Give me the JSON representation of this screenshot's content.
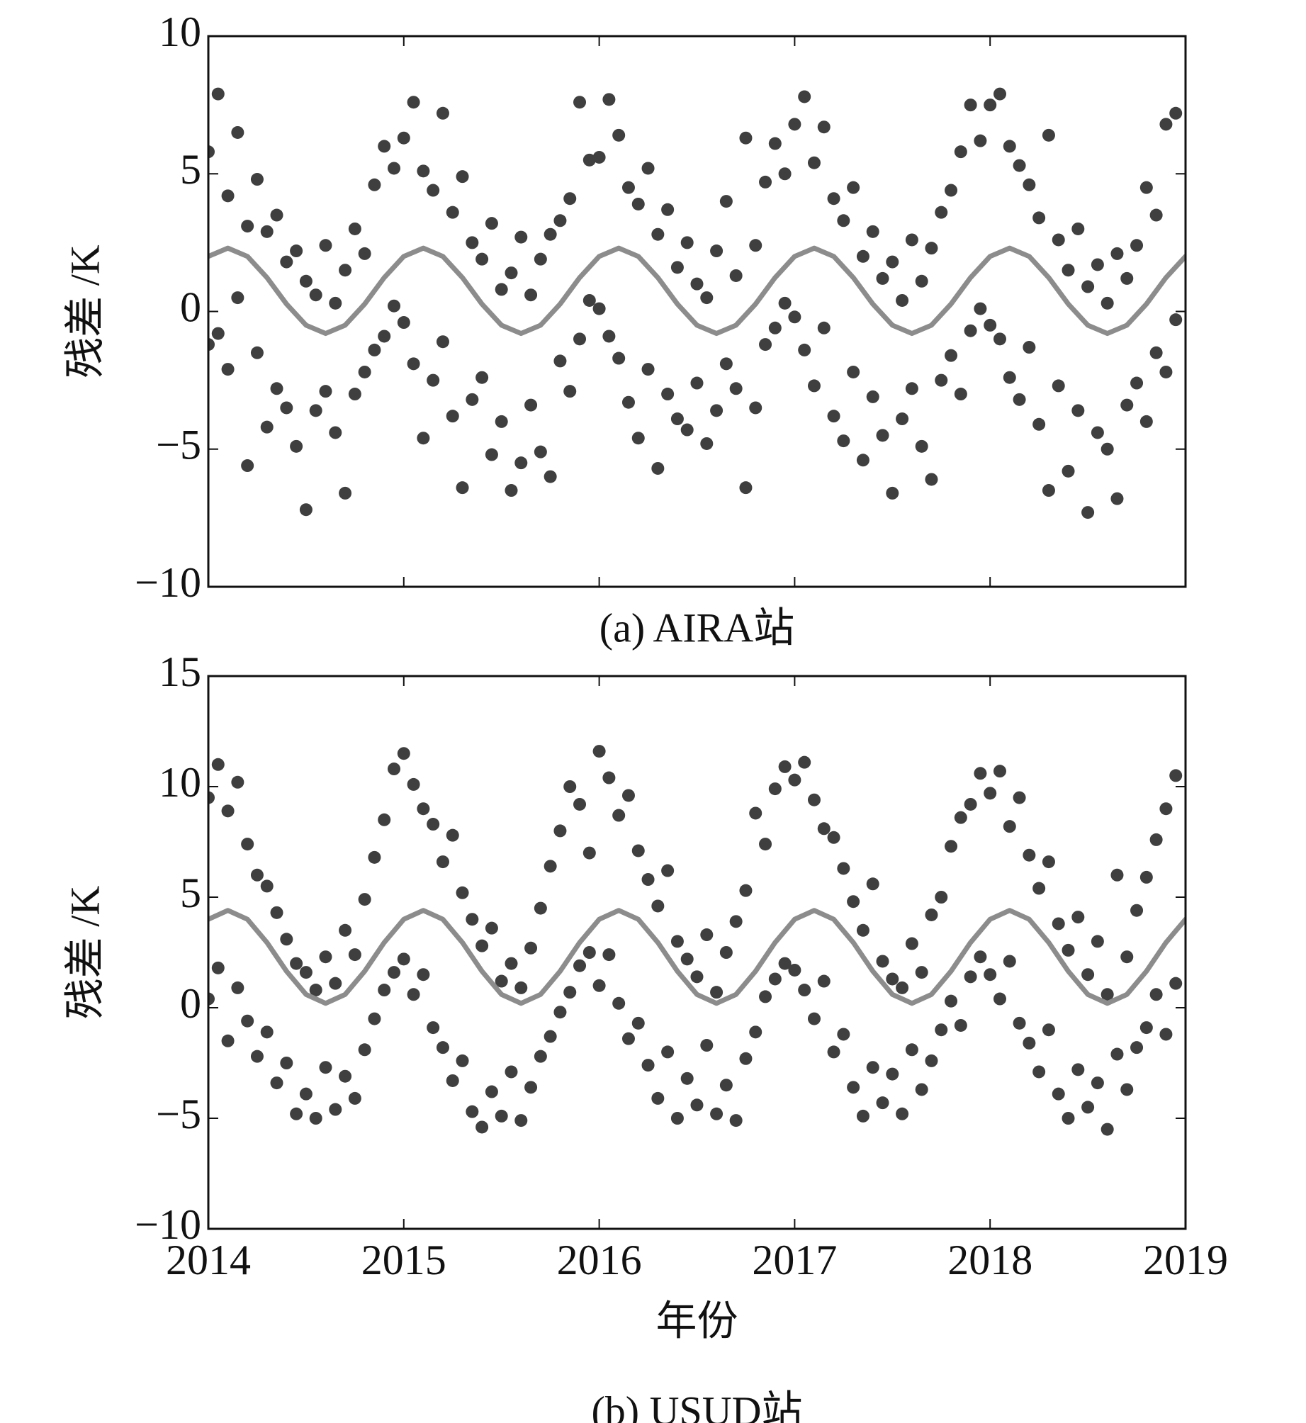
{
  "chart_data": [
    {
      "type": "scatter",
      "ylabel": "残差 /K",
      "caption": "(a) AIRA站",
      "xlim": [
        2014,
        2019
      ],
      "xticks": [
        2014,
        2015,
        2016,
        2017,
        2018,
        2019
      ],
      "ylim": [
        -10,
        10
      ],
      "yticks": [
        {
          "value": -10,
          "label": "−10"
        },
        {
          "value": -5,
          "label": "−5"
        },
        0,
        5,
        10
      ],
      "x": [
        2014,
        2014.05,
        2014.1,
        2014.15,
        2014.2,
        2014.25,
        2014.3,
        2014.35,
        2014.4,
        2014.45,
        2014.5,
        2014.55,
        2014.6,
        2014.65,
        2014.7,
        2014.75,
        2014.8,
        2014.85,
        2014.9,
        2014.95,
        2015,
        2015.05,
        2015.1,
        2015.15,
        2015.2,
        2015.25,
        2015.3,
        2015.35,
        2015.4,
        2015.45,
        2015.5,
        2015.55,
        2015.6,
        2015.65,
        2015.7,
        2015.75,
        2015.8,
        2015.85,
        2015.9,
        2015.95,
        2016,
        2016.05,
        2016.1,
        2016.15,
        2016.2,
        2016.25,
        2016.3,
        2016.35,
        2016.4,
        2016.45,
        2016.5,
        2016.55,
        2016.6,
        2016.65,
        2016.7,
        2016.75,
        2016.8,
        2016.85,
        2016.9,
        2016.95,
        2017,
        2017.05,
        2017.1,
        2017.15,
        2017.2,
        2017.25,
        2017.3,
        2017.35,
        2017.4,
        2017.45,
        2017.5,
        2017.55,
        2017.6,
        2017.65,
        2017.7,
        2017.75,
        2017.8,
        2017.85,
        2017.9,
        2017.95,
        2018,
        2018.05,
        2018.1,
        2018.15,
        2018.2,
        2018.25,
        2018.3,
        2018.35,
        2018.4,
        2018.45,
        2018.5,
        2018.55,
        2018.6,
        2018.65,
        2018.7,
        2018.75,
        2018.8,
        2018.85,
        2018.9,
        2018.95
      ],
      "series": [
        {
          "color": "#3f3f3f",
          "values": [
            5.8,
            7.9,
            4.2,
            6.5,
            3.1,
            4.8,
            2.9,
            3.5,
            1.8,
            2.2,
            1.1,
            0.6,
            2.4,
            0.3,
            1.5,
            3.0,
            2.1,
            4.6,
            6.0,
            5.2,
            6.3,
            7.6,
            5.1,
            4.4,
            7.2,
            3.6,
            4.9,
            2.5,
            1.9,
            3.2,
            0.8,
            1.4,
            2.7,
            0.6,
            1.9,
            2.8,
            3.3,
            4.1,
            7.6,
            5.5,
            5.6,
            7.7,
            6.4,
            4.5,
            3.9,
            5.2,
            2.8,
            3.7,
            1.6,
            2.5,
            1.0,
            0.5,
            2.2,
            4.0,
            1.3,
            6.3,
            2.4,
            4.7,
            6.1,
            5.0,
            6.8,
            7.8,
            5.4,
            6.7,
            4.1,
            3.3,
            4.5,
            2.0,
            2.9,
            1.2,
            1.8,
            0.4,
            2.6,
            1.1,
            2.3,
            3.6,
            4.4,
            5.8,
            7.5,
            6.2,
            7.5,
            7.9,
            6.0,
            5.3,
            4.6,
            3.4,
            6.4,
            2.6,
            1.5,
            3.0,
            0.9,
            1.7,
            0.3,
            2.1,
            1.2,
            2.4,
            4.5,
            3.5,
            6.8,
            7.2
          ]
        },
        {
          "color": "#3f3f3f",
          "values": [
            -1.2,
            -0.8,
            -2.1,
            0.5,
            -5.6,
            -1.5,
            -4.2,
            -2.8,
            -3.5,
            -4.9,
            -7.2,
            -3.6,
            -2.9,
            -4.4,
            -6.6,
            -3.0,
            -2.2,
            -1.4,
            -0.9,
            0.2,
            -0.4,
            -1.9,
            -4.6,
            -2.5,
            -1.1,
            -3.8,
            -6.4,
            -3.2,
            -2.4,
            -5.2,
            -4.0,
            -6.5,
            -5.5,
            -3.4,
            -5.1,
            -6.0,
            -1.8,
            -2.9,
            -1.0,
            0.4,
            0.1,
            -0.9,
            -1.7,
            -3.3,
            -4.6,
            -2.1,
            -5.7,
            -3.0,
            -3.9,
            -4.3,
            -2.6,
            -4.8,
            -3.6,
            -1.9,
            -2.8,
            -6.4,
            -3.5,
            -1.2,
            -0.6,
            0.3,
            -0.2,
            -1.4,
            -2.7,
            -0.6,
            -3.8,
            -4.7,
            -2.2,
            -5.4,
            -3.1,
            -4.5,
            -6.6,
            -3.9,
            -2.8,
            -4.9,
            -6.1,
            -2.5,
            -1.6,
            -3.0,
            -0.7,
            0.1,
            -0.5,
            -1.0,
            -2.4,
            -3.2,
            -1.3,
            -4.1,
            -6.5,
            -2.7,
            -5.8,
            -3.6,
            -7.3,
            -4.4,
            -5.0,
            -6.8,
            -3.4,
            -2.6,
            -4.0,
            -1.5,
            -2.2,
            -0.3
          ]
        },
        {
          "type": "line",
          "color": "#8c8c8c",
          "x": [
            2014,
            2014.1,
            2014.2,
            2014.3,
            2014.4,
            2014.5,
            2014.6,
            2014.7,
            2014.8,
            2014.9,
            2015,
            2015.1,
            2015.2,
            2015.3,
            2015.4,
            2015.5,
            2015.6,
            2015.7,
            2015.8,
            2015.9,
            2016,
            2016.1,
            2016.2,
            2016.3,
            2016.4,
            2016.5,
            2016.6,
            2016.7,
            2016.8,
            2016.9,
            2017,
            2017.1,
            2017.2,
            2017.3,
            2017.4,
            2017.5,
            2017.6,
            2017.7,
            2017.8,
            2017.9,
            2018,
            2018.1,
            2018.2,
            2018.3,
            2018.4,
            2018.5,
            2018.6,
            2018.7,
            2018.8,
            2018.9,
            2019
          ],
          "values": [
            2.0,
            2.3,
            2.0,
            1.23,
            0.27,
            -0.5,
            -0.8,
            -0.5,
            0.27,
            1.23,
            2.0,
            2.3,
            2.0,
            1.23,
            0.27,
            -0.5,
            -0.8,
            -0.5,
            0.27,
            1.23,
            2.0,
            2.3,
            2.0,
            1.23,
            0.27,
            -0.5,
            -0.8,
            -0.5,
            0.27,
            1.23,
            2.0,
            2.3,
            2.0,
            1.23,
            0.27,
            -0.5,
            -0.8,
            -0.5,
            0.27,
            1.23,
            2.0,
            2.3,
            2.0,
            1.23,
            0.27,
            -0.5,
            -0.8,
            -0.5,
            0.27,
            1.23,
            2.0
          ]
        }
      ]
    },
    {
      "type": "scatter",
      "ylabel": "残差 /K",
      "xlabel": "年份",
      "caption": "(b) USUD站",
      "xlim": [
        2014,
        2019
      ],
      "xticks": [
        2014,
        2015,
        2016,
        2017,
        2018,
        2019
      ],
      "ylim": [
        -10,
        15
      ],
      "yticks": [
        {
          "value": -10,
          "label": "−10"
        },
        {
          "value": -5,
          "label": "−5"
        },
        0,
        5,
        10,
        15
      ],
      "x": [
        2014,
        2014.05,
        2014.1,
        2014.15,
        2014.2,
        2014.25,
        2014.3,
        2014.35,
        2014.4,
        2014.45,
        2014.5,
        2014.55,
        2014.6,
        2014.65,
        2014.7,
        2014.75,
        2014.8,
        2014.85,
        2014.9,
        2014.95,
        2015,
        2015.05,
        2015.1,
        2015.15,
        2015.2,
        2015.25,
        2015.3,
        2015.35,
        2015.4,
        2015.45,
        2015.5,
        2015.55,
        2015.6,
        2015.65,
        2015.7,
        2015.75,
        2015.8,
        2015.85,
        2015.9,
        2015.95,
        2016,
        2016.05,
        2016.1,
        2016.15,
        2016.2,
        2016.25,
        2016.3,
        2016.35,
        2016.4,
        2016.45,
        2016.5,
        2016.55,
        2016.6,
        2016.65,
        2016.7,
        2016.75,
        2016.8,
        2016.85,
        2016.9,
        2016.95,
        2017,
        2017.05,
        2017.1,
        2017.15,
        2017.2,
        2017.25,
        2017.3,
        2017.35,
        2017.4,
        2017.45,
        2017.5,
        2017.55,
        2017.6,
        2017.65,
        2017.7,
        2017.75,
        2017.8,
        2017.85,
        2017.9,
        2017.95,
        2018,
        2018.05,
        2018.1,
        2018.15,
        2018.2,
        2018.25,
        2018.3,
        2018.35,
        2018.4,
        2018.45,
        2018.5,
        2018.55,
        2018.6,
        2018.65,
        2018.7,
        2018.75,
        2018.8,
        2018.85,
        2018.9,
        2018.95
      ],
      "series": [
        {
          "color": "#3f3f3f",
          "values": [
            9.5,
            11.0,
            8.9,
            10.2,
            7.4,
            6.0,
            5.5,
            4.3,
            3.1,
            2.0,
            1.6,
            0.8,
            2.3,
            1.1,
            3.5,
            2.4,
            4.9,
            6.8,
            8.5,
            10.8,
            11.5,
            10.1,
            9.0,
            8.3,
            6.6,
            7.8,
            5.2,
            4.0,
            2.8,
            3.6,
            1.2,
            2.0,
            0.9,
            2.7,
            4.5,
            6.4,
            8.0,
            10.0,
            9.2,
            7.0,
            11.6,
            10.4,
            8.7,
            9.6,
            7.1,
            5.8,
            4.6,
            6.2,
            3.0,
            2.2,
            1.4,
            3.3,
            0.7,
            2.5,
            3.9,
            5.3,
            8.8,
            7.4,
            9.9,
            10.9,
            10.3,
            11.1,
            9.4,
            8.1,
            7.7,
            6.3,
            4.8,
            3.5,
            5.6,
            2.1,
            1.3,
            0.9,
            2.9,
            1.6,
            4.2,
            5.0,
            7.3,
            8.6,
            9.2,
            10.6,
            9.7,
            10.7,
            8.2,
            9.5,
            6.9,
            5.4,
            6.6,
            3.8,
            2.6,
            4.1,
            1.5,
            3.0,
            0.6,
            6.0,
            2.3,
            4.4,
            5.9,
            7.6,
            9.0,
            10.5
          ]
        },
        {
          "color": "#3f3f3f",
          "values": [
            0.4,
            1.8,
            -1.5,
            0.9,
            -0.6,
            -2.2,
            -1.1,
            -3.4,
            -2.5,
            -4.8,
            -3.9,
            -5.0,
            -2.7,
            -4.6,
            -3.1,
            -4.1,
            -1.9,
            -0.5,
            0.8,
            1.6,
            2.2,
            0.6,
            1.5,
            -0.9,
            -1.8,
            -3.3,
            -2.4,
            -4.7,
            -5.4,
            -3.8,
            -4.9,
            -2.9,
            -5.1,
            -3.6,
            -2.2,
            -1.3,
            -0.2,
            0.7,
            1.9,
            2.5,
            1.0,
            2.4,
            0.2,
            -1.4,
            -0.7,
            -2.6,
            -4.1,
            -2.0,
            -5.0,
            -3.2,
            -4.4,
            -1.7,
            -4.8,
            -3.5,
            -5.1,
            -2.3,
            -1.1,
            0.5,
            1.3,
            2.0,
            1.7,
            0.8,
            -0.5,
            1.2,
            -2.0,
            -1.2,
            -3.6,
            -4.9,
            -2.7,
            -4.3,
            -3.0,
            -4.8,
            -1.9,
            -3.7,
            -2.4,
            -1.0,
            0.3,
            -0.8,
            1.4,
            2.3,
            1.5,
            0.4,
            2.1,
            -0.7,
            -1.6,
            -2.9,
            -1.0,
            -3.9,
            -5.0,
            -2.8,
            -4.5,
            -3.4,
            -5.5,
            -2.1,
            -3.7,
            -1.8,
            -0.9,
            0.6,
            -1.2,
            1.1
          ]
        },
        {
          "type": "line",
          "color": "#8c8c8c",
          "x": [
            2014,
            2014.1,
            2014.2,
            2014.3,
            2014.4,
            2014.5,
            2014.6,
            2014.7,
            2014.8,
            2014.9,
            2015,
            2015.1,
            2015.2,
            2015.3,
            2015.4,
            2015.5,
            2015.6,
            2015.7,
            2015.8,
            2015.9,
            2016,
            2016.1,
            2016.2,
            2016.3,
            2016.4,
            2016.5,
            2016.6,
            2016.7,
            2016.8,
            2016.9,
            2017,
            2017.1,
            2017.2,
            2017.3,
            2017.4,
            2017.5,
            2017.6,
            2017.7,
            2017.8,
            2017.9,
            2018,
            2018.1,
            2018.2,
            2018.3,
            2018.4,
            2018.5,
            2018.6,
            2018.7,
            2018.8,
            2018.9,
            2019
          ],
          "values": [
            4.0,
            4.4,
            4.0,
            2.95,
            1.65,
            0.6,
            0.2,
            0.6,
            1.65,
            2.95,
            4.0,
            4.4,
            4.0,
            2.95,
            1.65,
            0.6,
            0.2,
            0.6,
            1.65,
            2.95,
            4.0,
            4.4,
            4.0,
            2.95,
            1.65,
            0.6,
            0.2,
            0.6,
            1.65,
            2.95,
            4.0,
            4.4,
            4.0,
            2.95,
            1.65,
            0.6,
            0.2,
            0.6,
            1.65,
            2.95,
            4.0,
            4.4,
            4.0,
            2.95,
            1.65,
            0.6,
            0.2,
            0.6,
            1.65,
            2.95,
            4.0
          ]
        }
      ]
    }
  ]
}
